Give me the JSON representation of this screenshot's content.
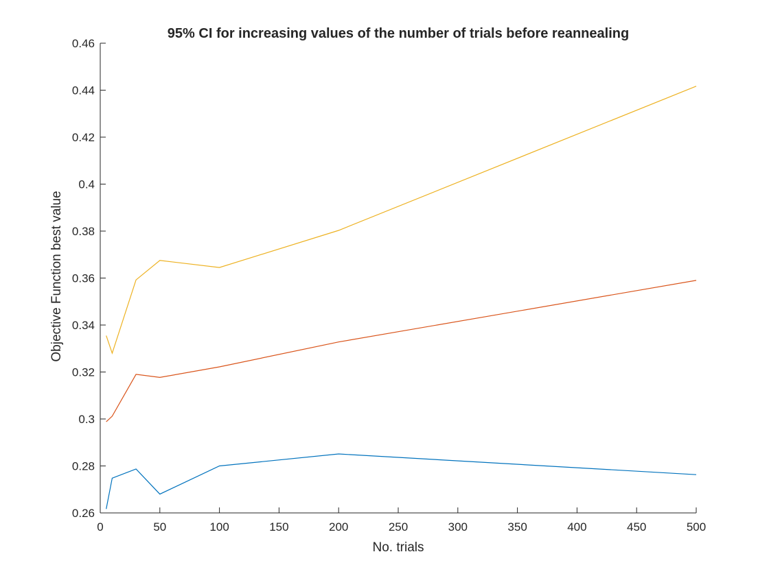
{
  "chart_data": {
    "type": "line",
    "title": "95% CI for increasing values of the number of trials before reannealing",
    "xlabel": "No. trials",
    "ylabel": "Objective Function best value",
    "xlim": [
      0,
      500
    ],
    "ylim": [
      0.26,
      0.46
    ],
    "xticks": [
      0,
      50,
      100,
      150,
      200,
      250,
      300,
      350,
      400,
      450,
      500
    ],
    "xtick_labels": [
      "0",
      "50",
      "100",
      "150",
      "200",
      "250",
      "300",
      "350",
      "400",
      "450",
      "500"
    ],
    "yticks": [
      0.26,
      0.28,
      0.3,
      0.32,
      0.34,
      0.36,
      0.38,
      0.4,
      0.42,
      0.44,
      0.46
    ],
    "ytick_labels": [
      "0.26",
      "0.28",
      "0.3",
      "0.32",
      "0.34",
      "0.36",
      "0.38",
      "0.4",
      "0.42",
      "0.44",
      "0.46"
    ],
    "grid": false,
    "legend": "none",
    "x": [
      5,
      10,
      30,
      50,
      100,
      200,
      500
    ],
    "series": [
      {
        "color": "#0072BD",
        "values": [
          0.2617,
          0.2748,
          0.2787,
          0.268,
          0.28,
          0.2851,
          0.2763
        ]
      },
      {
        "color": "#D95319",
        "values": [
          0.2988,
          0.3012,
          0.319,
          0.3177,
          0.3222,
          0.3328,
          0.359
        ]
      },
      {
        "color": "#EDB120",
        "values": [
          0.3355,
          0.328,
          0.3592,
          0.3675,
          0.3645,
          0.3803,
          0.4417
        ]
      }
    ]
  }
}
